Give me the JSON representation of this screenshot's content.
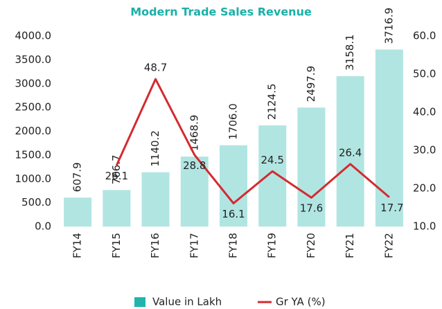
{
  "chart_data": {
    "type": "bar-line",
    "title": "Modern Trade Sales Revenue",
    "categories": [
      "FY14",
      "FY15",
      "FY16",
      "FY17",
      "FY18",
      "FY19",
      "FY20",
      "FY21",
      "FY22"
    ],
    "series": [
      {
        "name": "Value in Lakh",
        "type": "bar",
        "color": "#1fb5ad",
        "values": [
          607.9,
          766.7,
          1140.2,
          1468.9,
          1706.0,
          2124.5,
          2497.9,
          3158.1,
          3716.9
        ],
        "value_labels": [
          "607.9",
          "766.7",
          "1140.2",
          "1468.9",
          "1706.0",
          "2124.5",
          "2497.9",
          "3158.1",
          "3716.9"
        ]
      },
      {
        "name": "Gr YA (%)",
        "type": "line",
        "axis": "y2",
        "color": "#d42a2f",
        "values": [
          null,
          26.1,
          48.7,
          28.8,
          16.1,
          24.5,
          17.6,
          26.4,
          17.7
        ],
        "value_labels": [
          null,
          "26.1",
          "48.7",
          "28.8",
          "16.1",
          "24.5",
          "17.6",
          "26.4",
          "17.7"
        ]
      }
    ],
    "ylim": [
      0,
      4000
    ],
    "yticks": [
      {
        "value": 0,
        "label": "0.0"
      },
      {
        "value": 500,
        "label": "500.0"
      },
      {
        "value": 1000,
        "label": "1000.0"
      },
      {
        "value": 1500,
        "label": "1500.0"
      },
      {
        "value": 2000,
        "label": "2000.0"
      },
      {
        "value": 2500,
        "label": "2500.0"
      },
      {
        "value": 3000,
        "label": "3000.0"
      },
      {
        "value": 3500,
        "label": "3500.0"
      },
      {
        "value": 4000,
        "label": "4000.0"
      }
    ],
    "y2lim": [
      10,
      60
    ],
    "y2ticks": [
      {
        "value": 10,
        "label": "10.0"
      },
      {
        "value": 20,
        "label": "20.0"
      },
      {
        "value": 30,
        "label": "30.0"
      },
      {
        "value": 40,
        "label": "40.0"
      },
      {
        "value": 50,
        "label": "50.0"
      },
      {
        "value": 60,
        "label": "60.0"
      }
    ],
    "legend": "bottom"
  }
}
